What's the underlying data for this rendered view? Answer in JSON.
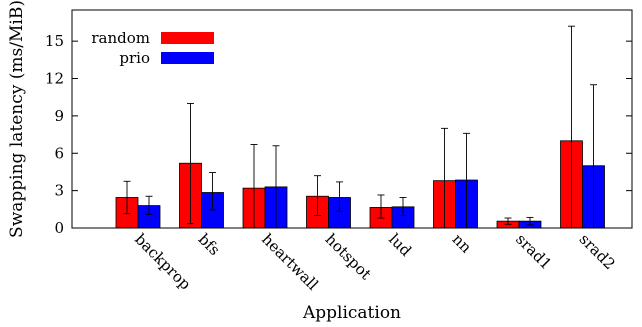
{
  "chart_data": {
    "type": "bar",
    "title": "",
    "xlabel": "Application",
    "ylabel": "Swapping latency (ms/MiB)",
    "categories": [
      "backprop",
      "bfs",
      "heartwall",
      "hotspot",
      "lud",
      "nn",
      "srad1",
      "srad2"
    ],
    "ylim": [
      0,
      17.5
    ],
    "yticks": [
      0,
      3,
      6,
      9,
      12,
      15
    ],
    "grid": false,
    "legend_position": "top-left",
    "series": [
      {
        "name": "random",
        "color": "#ff0000",
        "values": [
          2.45,
          5.2,
          3.2,
          2.55,
          1.65,
          3.8,
          0.55,
          7.0
        ],
        "error_low": [
          1.15,
          0.35,
          0.0,
          1.0,
          0.8,
          0.0,
          0.3,
          0.0
        ],
        "error_high": [
          3.75,
          10.0,
          6.7,
          4.2,
          2.65,
          8.0,
          0.8,
          16.2
        ]
      },
      {
        "name": "prio",
        "color": "#0000ff",
        "values": [
          1.8,
          2.85,
          3.3,
          2.45,
          1.7,
          3.85,
          0.55,
          5.0
        ],
        "error_low": [
          1.1,
          1.45,
          0.0,
          1.35,
          1.0,
          0.0,
          0.25,
          0.0
        ],
        "error_high": [
          2.55,
          4.45,
          6.6,
          3.7,
          2.45,
          7.6,
          0.85,
          11.5
        ]
      }
    ]
  }
}
